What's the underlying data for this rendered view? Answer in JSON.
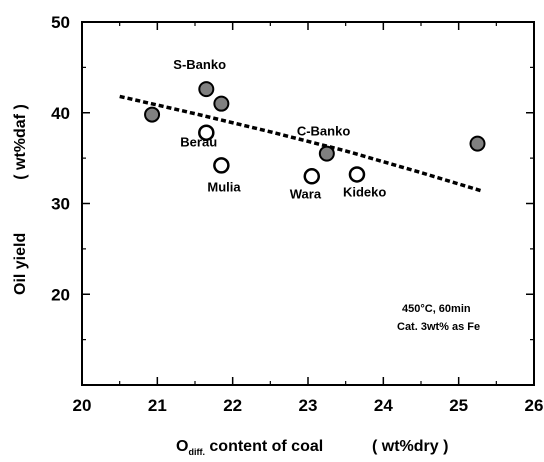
{
  "chart_data": {
    "type": "scatter",
    "xlabel_main": "O",
    "xlabel_sub": "diff.",
    "xlabel_rest": " content of coal",
    "xlabel_unit": "( wt%dry )",
    "ylabel": "Oil yield",
    "ylabel_unit": "( wt%daf )",
    "xlim": [
      20,
      26
    ],
    "ylim": [
      10,
      50
    ],
    "xticks": [
      "20",
      "21",
      "22",
      "23",
      "24",
      "25",
      "26"
    ],
    "yticks": [
      "20",
      "30",
      "40",
      "50"
    ],
    "series": [
      {
        "marker": "filled",
        "color": "#808080",
        "points": [
          {
            "label": "",
            "x": 20.93,
            "y": 39.8
          },
          {
            "label": "S-Banko",
            "x": 21.65,
            "y": 42.6
          },
          {
            "label": "",
            "x": 21.85,
            "y": 41.0
          },
          {
            "label": "C-Banko",
            "x": 23.25,
            "y": 35.5
          },
          {
            "label": "",
            "x": 25.25,
            "y": 36.6
          }
        ]
      },
      {
        "marker": "open",
        "color": "#ffffff",
        "points": [
          {
            "label": "Berau",
            "x": 21.65,
            "y": 37.8
          },
          {
            "label": "Mulia",
            "x": 21.85,
            "y": 34.2
          },
          {
            "label": "Wara",
            "x": 23.05,
            "y": 33.0
          },
          {
            "label": "Kideko",
            "x": 23.65,
            "y": 33.2
          }
        ]
      }
    ],
    "trendline": {
      "x": [
        20.5,
        21.5,
        22.5,
        23.5,
        24.5,
        25.3
      ],
      "y": [
        41.8,
        39.9,
        37.9,
        35.8,
        33.4,
        31.4
      ]
    },
    "annotation": [
      "450°C, 60min",
      "Cat. 3wt% as Fe"
    ]
  }
}
